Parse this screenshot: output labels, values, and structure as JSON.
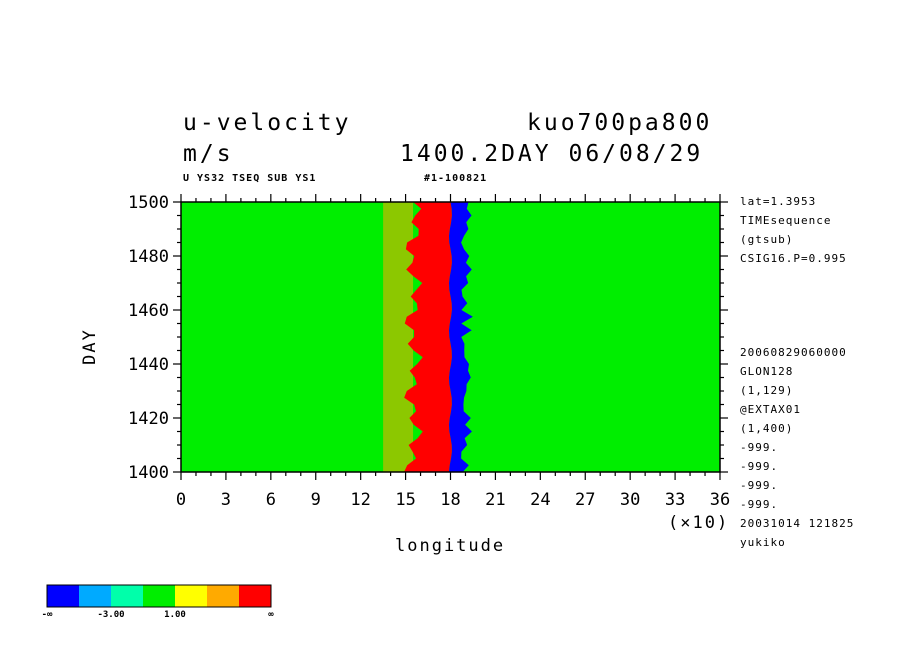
{
  "header": {
    "title_left": "u-velocity",
    "title_right": "kuo700pa800",
    "units": "m/s",
    "time_label": "1400.2DAY 06/08/29",
    "subtitle_left": "U YS32 TSEQ SUB YS1",
    "subtitle_right": "#1-100821"
  },
  "side_info": {
    "top": [
      "lat=1.3953",
      "TIMEsequence",
      "(gtsub)",
      "CSIG16.P=0.995"
    ],
    "bottom": [
      "20060829060000",
      "GLON128",
      "(1,129)",
      "@EXTAX01",
      "(1,400)",
      "-999.",
      "-999.",
      "-999.",
      "-999.",
      "20031014 121825",
      "yukiko"
    ]
  },
  "colorbar": {
    "colors": [
      "#0000ff",
      "#00aaff",
      "#00ffaa",
      "#00ee00",
      "#ffff00",
      "#ffaa00",
      "#ff0000"
    ],
    "labels": [
      "-∞",
      "-3.00",
      "1.00",
      "∞"
    ]
  },
  "chart_data": {
    "type": "heatmap",
    "xlabel": "longitude",
    "ylabel": "DAY",
    "x_multiplier_label": "(×10)",
    "xlim": [
      0,
      36
    ],
    "ylim": [
      1400,
      1500
    ],
    "xticks": [
      "0",
      "3",
      "6",
      "9",
      "12",
      "15",
      "18",
      "21",
      "24",
      "27",
      "30",
      "33",
      "36"
    ],
    "yticks": [
      "1400",
      "1420",
      "1440",
      "1460",
      "1480",
      "1500"
    ],
    "levels": [
      -3.0,
      1.0
    ],
    "features": {
      "strong_positive_band_longitude": [
        15.5,
        18
      ],
      "strong_negative_band_longitude": [
        18,
        20.5
      ]
    }
  }
}
